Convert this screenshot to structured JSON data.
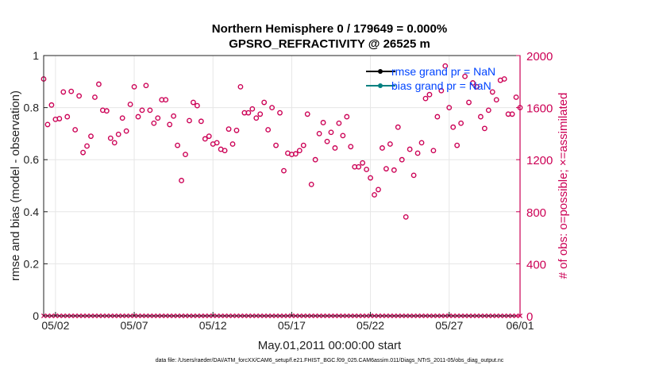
{
  "chart_data": {
    "type": "scatter",
    "title": "Northern Hemisphere 0 / 179649 = 0.000%",
    "subtitle": "GPSRO_REFRACTIVITY @ 26525 m",
    "xlabel": "May.01,2011 00:00:00 start",
    "ylabel_left": "rmse and bias (model - observation)",
    "ylabel_right": "# of obs: o=possible; ×=assimilated",
    "x_ticks": [
      "05/02",
      "05/07",
      "05/12",
      "05/17",
      "05/22",
      "05/27",
      "06/01"
    ],
    "y_left_ticks": [
      "0",
      "0.2",
      "0.4",
      "0.6",
      "0.8",
      "1"
    ],
    "y_right_ticks": [
      "0",
      "400",
      "800",
      "1200",
      "1600",
      "2000"
    ],
    "ylim_left": [
      0,
      1
    ],
    "ylim_right": [
      0,
      2000
    ],
    "x_range_days": [
      0.75,
      31.0
    ],
    "grid": true,
    "legend_position": "top-right",
    "legend": [
      {
        "name": "rmse grand pr = NaN",
        "color": "#000000"
      },
      {
        "name": "bias grand pr = NaN",
        "color": "#008080"
      }
    ],
    "legend_text_color": "#0044ff",
    "right_axis_color": "#cc0055",
    "footnote": "data file: /Users/raeder/DAI/ATM_forcXX/CAM6_setup/f.e21.FHIST_BGC.f09_025.CAM6assim.011/Diags_NTrS_2011-05/obs_diag_output.nc",
    "possible_obs": {
      "x": [
        0.75,
        1,
        1.25,
        1.5,
        1.75,
        2,
        2.25,
        2.5,
        2.75,
        3,
        3.25,
        3.5,
        3.75,
        4,
        4.25,
        4.5,
        4.75,
        5,
        5.25,
        5.5,
        5.75,
        6,
        6.25,
        6.5,
        6.75,
        7,
        7.25,
        7.5,
        7.75,
        8,
        8.25,
        8.5,
        8.75,
        9,
        9.25,
        9.5,
        9.75,
        10,
        10.25,
        10.5,
        10.75,
        11,
        11.25,
        11.5,
        11.75,
        12,
        12.25,
        12.5,
        12.75,
        13,
        13.25,
        13.5,
        13.75,
        14,
        14.25,
        14.5,
        14.75,
        15,
        15.25,
        15.5,
        15.75,
        16,
        16.25,
        16.5,
        16.75,
        17,
        17.25,
        17.5,
        17.75,
        18,
        18.25,
        18.5,
        18.75,
        19,
        19.25,
        19.5,
        19.75,
        20,
        20.25,
        20.5,
        20.75,
        21,
        21.25,
        21.5,
        21.75,
        22,
        22.25,
        22.5,
        22.75,
        23,
        23.25,
        23.5,
        23.75,
        24,
        24.25,
        24.5,
        24.75,
        25,
        25.25,
        25.5,
        25.75,
        26,
        26.25,
        26.5,
        26.75,
        27,
        27.25,
        27.5,
        27.75,
        28,
        28.25,
        28.5,
        28.75,
        29,
        29.25,
        29.5,
        29.75,
        30,
        30.25,
        30.5,
        30.75,
        31
      ],
      "y": [
        1820,
        1470,
        1620,
        1510,
        1515,
        1720,
        1530,
        1725,
        1430,
        1690,
        1255,
        1305,
        1380,
        1680,
        1780,
        1580,
        1575,
        1365,
        1330,
        1395,
        1520,
        1420,
        1625,
        1760,
        1530,
        1580,
        1770,
        1580,
        1480,
        1520,
        1660,
        1660,
        1470,
        1535,
        1310,
        1040,
        1240,
        1500,
        1640,
        1615,
        1495,
        1360,
        1380,
        1320,
        1330,
        1280,
        1270,
        1435,
        1320,
        1425,
        1760,
        1560,
        1560,
        1590,
        1520,
        1550,
        1640,
        1430,
        1600,
        1310,
        1560,
        1115,
        1250,
        1240,
        1245,
        1270,
        1310,
        1550,
        1010,
        1200,
        1400,
        1485,
        1340,
        1410,
        1290,
        1480,
        1385,
        1530,
        1300,
        1145,
        1145,
        1175,
        1125,
        1060,
        930,
        970,
        1290,
        1130,
        1320,
        1120,
        1450,
        1200,
        760,
        1280,
        1080,
        1250,
        1330,
        1670,
        1700,
        1270,
        1530,
        1730,
        1920,
        1600,
        1450,
        1310,
        1480,
        1840,
        1640,
        1790,
        1760,
        1530,
        1440,
        1580,
        1720,
        1660,
        1810,
        1820,
        1550,
        1550,
        1680,
        1600
      ]
    },
    "assimilated_obs": "0 on every day",
    "rmse_values": "none (NaN)",
    "bias_values": "none (NaN)"
  }
}
